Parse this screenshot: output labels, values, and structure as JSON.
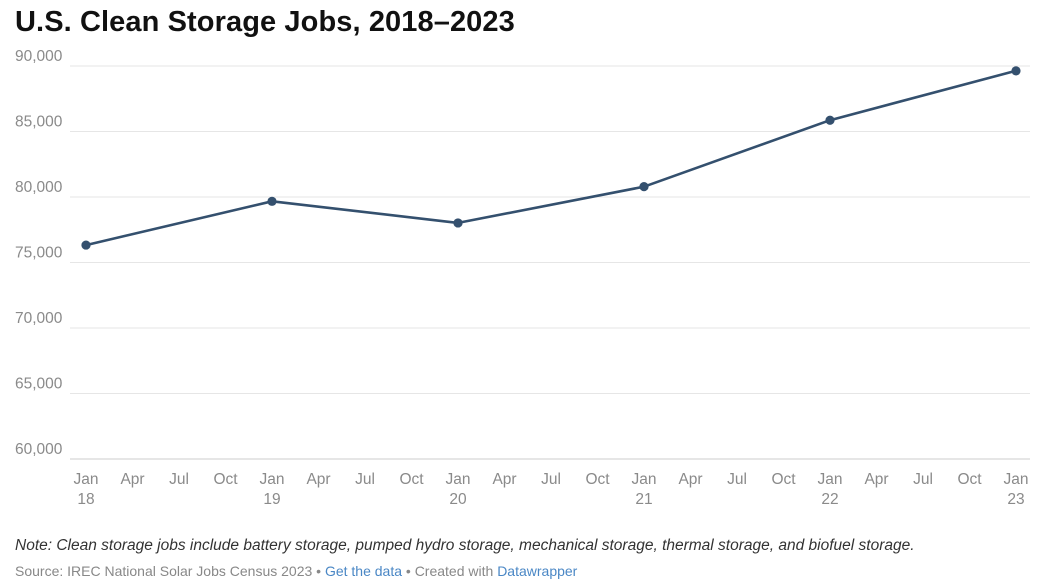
{
  "chart_data": {
    "type": "line",
    "title": "U.S. Clean Storage Jobs, 2018–2023",
    "xlabel": "",
    "ylabel": "",
    "x": [
      "2018-01",
      "2019-01",
      "2020-01",
      "2021-01",
      "2022-01",
      "2023-01"
    ],
    "series": [
      {
        "values": [
          76330,
          79670,
          78020,
          80790,
          85860,
          89630
        ]
      }
    ],
    "ylim": [
      60000,
      90000
    ],
    "yticks": [
      60000,
      65000,
      70000,
      75000,
      80000,
      85000,
      90000
    ],
    "ytick_labels": [
      "60,000",
      "65,000",
      "70,000",
      "75,000",
      "80,000",
      "85,000",
      "90,000"
    ],
    "xlim": [
      "2018-01",
      "2023-01"
    ],
    "xticks": [
      {
        "date": "2018-01",
        "label": "Jan",
        "year": "18"
      },
      {
        "date": "2018-04",
        "label": "Apr",
        "year": ""
      },
      {
        "date": "2018-07",
        "label": "Jul",
        "year": ""
      },
      {
        "date": "2018-10",
        "label": "Oct",
        "year": ""
      },
      {
        "date": "2019-01",
        "label": "Jan",
        "year": "19"
      },
      {
        "date": "2019-04",
        "label": "Apr",
        "year": ""
      },
      {
        "date": "2019-07",
        "label": "Jul",
        "year": ""
      },
      {
        "date": "2019-10",
        "label": "Oct",
        "year": ""
      },
      {
        "date": "2020-01",
        "label": "Jan",
        "year": "20"
      },
      {
        "date": "2020-04",
        "label": "Apr",
        "year": ""
      },
      {
        "date": "2020-07",
        "label": "Jul",
        "year": ""
      },
      {
        "date": "2020-10",
        "label": "Oct",
        "year": ""
      },
      {
        "date": "2021-01",
        "label": "Jan",
        "year": "21"
      },
      {
        "date": "2021-04",
        "label": "Apr",
        "year": ""
      },
      {
        "date": "2021-07",
        "label": "Jul",
        "year": ""
      },
      {
        "date": "2021-10",
        "label": "Oct",
        "year": ""
      },
      {
        "date": "2022-01",
        "label": "Jan",
        "year": "22"
      },
      {
        "date": "2022-04",
        "label": "Apr",
        "year": ""
      },
      {
        "date": "2022-07",
        "label": "Jul",
        "year": ""
      },
      {
        "date": "2022-10",
        "label": "Oct",
        "year": ""
      },
      {
        "date": "2023-01",
        "label": "Jan",
        "year": "23"
      }
    ],
    "grid": true,
    "line_color": "#34506e",
    "grid_color": "#e6e6e6",
    "baseline_color": "#cccccc",
    "tick_color": "#8a8a8a"
  },
  "footer": {
    "note": "Note: Clean storage jobs include battery storage, pumped hydro storage, mechanical storage, thermal storage, and biofuel storage.",
    "source_prefix": "Source: IREC National Solar Jobs Census 2023 • ",
    "get_data_link": "Get the data",
    "created_with": " • Created with ",
    "datawrapper_link": "Datawrapper",
    "link_color": "#4a87c5"
  }
}
